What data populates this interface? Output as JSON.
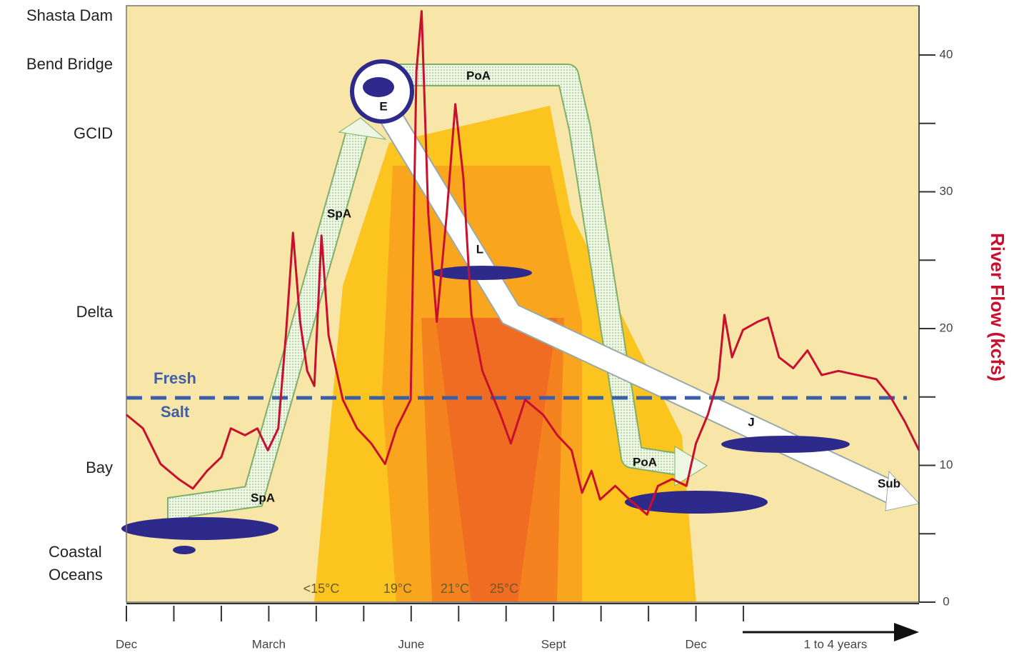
{
  "chart_data": {
    "type": "line",
    "y2label": "River Flow (kcfs)",
    "locations": [
      "Shasta Dam",
      "Bend Bridge",
      "GCID",
      "Delta",
      "Bay",
      "Coastal Oceans"
    ],
    "x": [
      0,
      0.35,
      0.72,
      1.1,
      1.4,
      1.7,
      2.0,
      2.2,
      2.5,
      2.76,
      2.98,
      3.2,
      3.36,
      3.51,
      3.66,
      3.81,
      3.96,
      4.11,
      4.26,
      4.56,
      4.86,
      5.16,
      5.45,
      5.69,
      5.99,
      6.11,
      6.22,
      6.36,
      6.54,
      6.75,
      6.93,
      7.1,
      7.27,
      7.5,
      7.88,
      8.1,
      8.4,
      8.78,
      9.08,
      9.38,
      9.6,
      9.8,
      9.98,
      10.3,
      10.6,
      10.97,
      11.2,
      11.5,
      11.8,
      12.0,
      12.25,
      12.47,
      12.6,
      12.76,
      12.99,
      13.3,
      13.52,
      13.75,
      14.05,
      14.35,
      14.65,
      15.0,
      15.4,
      15.8,
      16.1,
      16.4,
      16.7
    ],
    "series": [
      {
        "color": "#c8102e",
        "axis": "y2",
        "values": [
          13.7,
          12.7,
          10.1,
          9.0,
          8.3,
          9.6,
          10.6,
          12.7,
          12.2,
          12.7,
          11.1,
          12.7,
          19.5,
          27.0,
          20.5,
          16.9,
          15.8,
          26.8,
          19.5,
          14.8,
          12.7,
          11.6,
          10.1,
          12.7,
          14.8,
          38.8,
          43.2,
          28.4,
          20.5,
          28.4,
          36.4,
          31.0,
          21.0,
          16.9,
          13.7,
          11.6,
          14.8,
          13.7,
          12.2,
          11.1,
          8.0,
          9.6,
          7.5,
          8.5,
          7.5,
          6.4,
          8.5,
          9.0,
          8.5,
          11.6,
          13.7,
          16.3,
          21.0,
          17.9,
          19.9,
          20.5,
          20.8,
          17.9,
          17.1,
          18.4,
          16.6,
          16.9,
          16.6,
          16.3,
          15.0,
          13.2,
          11.1
        ]
      }
    ],
    "xlim": [
      0,
      16.7
    ],
    "xticks": [
      {
        "value": 0,
        "label": "Dec"
      },
      {
        "value": 3,
        "label": "March"
      },
      {
        "value": 6,
        "label": "June"
      },
      {
        "value": 9,
        "label": "Sept"
      },
      {
        "value": 12,
        "label": "Dec"
      }
    ],
    "xminorticks": [
      1,
      2,
      4,
      5,
      7,
      8,
      10,
      11,
      13
    ],
    "y2lim": [
      0,
      43.6
    ],
    "y2ticks": [
      0,
      10,
      20,
      30,
      40
    ],
    "y2minorticks": [
      5,
      15,
      25,
      35
    ],
    "annotations": {
      "fresh": "Fresh",
      "salt": "Salt",
      "temperatures": [
        "<15°C",
        "19°C",
        "21°C",
        "25°C"
      ],
      "stages": [
        "SpA",
        "SpA",
        "PoA",
        "PoA",
        "E",
        "L",
        "J",
        "Sub"
      ],
      "duration": "1 to 4 years"
    }
  }
}
